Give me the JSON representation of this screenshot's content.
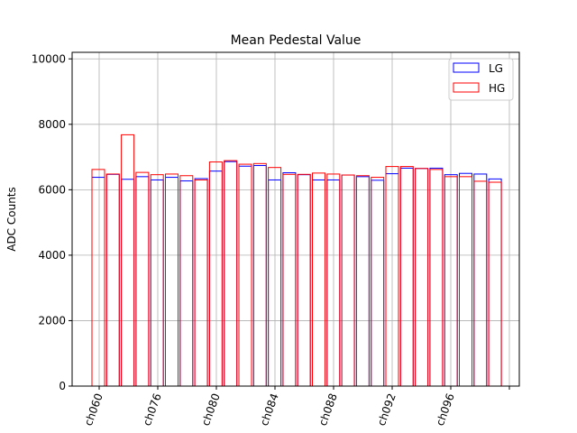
{
  "chart_data": {
    "type": "bar",
    "title": "Mean Pedestal Value",
    "xlabel": "",
    "ylabel": "ADC Counts",
    "ylim": [
      0,
      10200
    ],
    "yticks": [
      0,
      2000,
      4000,
      6000,
      8000,
      10000
    ],
    "xtick_labels": [
      "ch060",
      "ch076",
      "ch080",
      "ch084",
      "ch088",
      "ch092",
      "ch096",
      ""
    ],
    "grid": true,
    "legend_position": "top-right",
    "series": [
      {
        "name": "LG",
        "color": "#0000ff",
        "values": [
          6380,
          6470,
          6320,
          6400,
          6300,
          6380,
          6270,
          6340,
          6570,
          6860,
          6720,
          6740,
          6300,
          6520,
          6460,
          6300,
          6300,
          6450,
          6400,
          6290,
          6490,
          6660,
          6650,
          6660,
          6460,
          6500,
          6480,
          6330
        ]
      },
      {
        "name": "HG",
        "color": "#ff0000",
        "values": [
          6620,
          6480,
          7680,
          6530,
          6460,
          6480,
          6430,
          6300,
          6850,
          6890,
          6780,
          6800,
          6680,
          6470,
          6470,
          6510,
          6480,
          6450,
          6430,
          6380,
          6710,
          6710,
          6650,
          6620,
          6400,
          6400,
          6260,
          6230
        ]
      }
    ]
  }
}
